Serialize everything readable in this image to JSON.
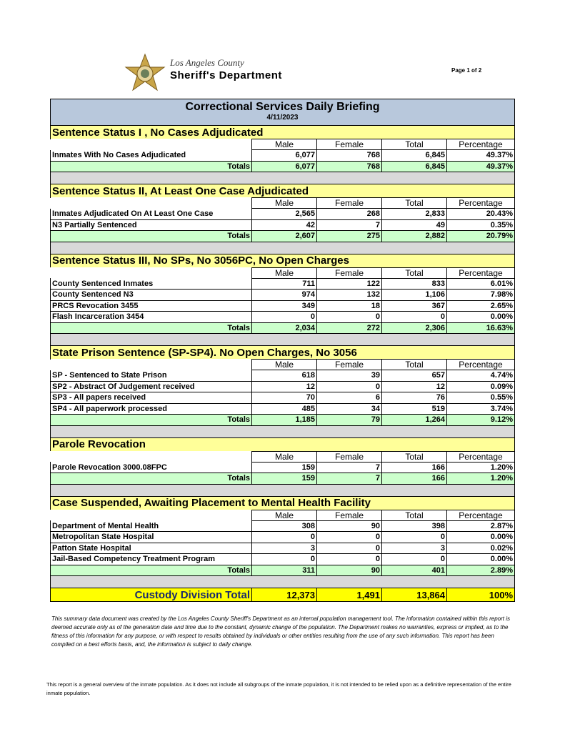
{
  "header": {
    "org_line1": "Los Angeles County",
    "org_line2": "Sheriff's Department",
    "page": "Page 1 of 2"
  },
  "title": "Correctional Services Daily Briefing",
  "date": "4/11/2023",
  "columns": [
    "Male",
    "Female",
    "Total",
    "Percentage"
  ],
  "sections": [
    {
      "title": "Sentence Status I , No Cases Adjudicated",
      "rows": [
        [
          "Inmates With No Cases Adjudicated",
          "6,077",
          "768",
          "6,845",
          "49.37%"
        ]
      ],
      "totals": [
        "Totals",
        "6,077",
        "768",
        "6,845",
        "49.37%"
      ]
    },
    {
      "title": "Sentence Status II, At Least One Case Adjudicated",
      "rows": [
        [
          "Inmates Adjudicated On At Least One Case",
          "2,565",
          "268",
          "2,833",
          "20.43%"
        ],
        [
          "N3 Partially Sentenced",
          "42",
          "7",
          "49",
          "0.35%"
        ]
      ],
      "totals": [
        "Totals",
        "2,607",
        "275",
        "2,882",
        "20.79%"
      ]
    },
    {
      "title": "Sentence Status III, No SPs, No 3056PC, No Open Charges",
      "rows": [
        [
          "County Sentenced Inmates",
          "711",
          "122",
          "833",
          "6.01%"
        ],
        [
          "County Sentenced N3",
          "974",
          "132",
          "1,106",
          "7.98%"
        ],
        [
          "PRCS Revocation 3455",
          "349",
          "18",
          "367",
          "2.65%"
        ],
        [
          "Flash Incarceration 3454",
          "0",
          "0",
          "0",
          "0.00%"
        ]
      ],
      "totals": [
        "Totals",
        "2,034",
        "272",
        "2,306",
        "16.63%"
      ]
    },
    {
      "title": "State Prison Sentence (SP-SP4). No Open Charges, No 3056",
      "rows": [
        [
          "SP - Sentenced to State Prison",
          "618",
          "39",
          "657",
          "4.74%"
        ],
        [
          "SP2 - Abstract Of Judgement received",
          "12",
          "0",
          "12",
          "0.09%"
        ],
        [
          "SP3 - All papers received",
          "70",
          "6",
          "76",
          "0.55%"
        ],
        [
          "SP4 - All paperwork processed",
          "485",
          "34",
          "519",
          "3.74%"
        ]
      ],
      "totals": [
        "Totals",
        "1,185",
        "79",
        "1,264",
        "9.12%"
      ]
    },
    {
      "title": "Parole Revocation",
      "rows": [
        [
          "Parole Revocation 3000.08FPC",
          "159",
          "7",
          "166",
          "1.20%"
        ]
      ],
      "totals": [
        "Totals",
        "159",
        "7",
        "166",
        "1.20%"
      ]
    },
    {
      "title": "Case Suspended, Awaiting Placement to Mental Health Facility",
      "rows": [
        [
          "Department of Mental Health",
          "308",
          "90",
          "398",
          "2.87%"
        ],
        [
          "Metropolitan State Hospital",
          "0",
          "0",
          "0",
          "0.00%"
        ],
        [
          "Patton State Hospital",
          "3",
          "0",
          "3",
          "0.02%"
        ],
        [
          "Jail-Based Competency Treatment Program",
          "0",
          "0",
          "0",
          "0.00%"
        ]
      ],
      "totals": [
        "Totals",
        "311",
        "90",
        "401",
        "2.89%"
      ]
    }
  ],
  "grand_total": [
    "Custody Division Total",
    "12,373",
    "1,491",
    "13,864",
    "100%"
  ],
  "disclaimer": "This summary data document was created by the Los Angeles County Sheriff's Department as an internal population management tool.  The information contained within this report is deemed accurate only as of the generation date and time due to the constant, dynamic change of the population.  The Department makes no warranties, express or implied, as to the fitness of this information for any purpose, or with respect to results obtained by individuals or other entities resulting from the use of any such information.  This report has been compiled on a best efforts basis, and, the information is subject to daily change.",
  "footer": "This report is a general overview of the inmate population.  As it does not include all subgroups of the inmate population, it is not intended to be relied upon as a definitive representation of the entire inmate population."
}
